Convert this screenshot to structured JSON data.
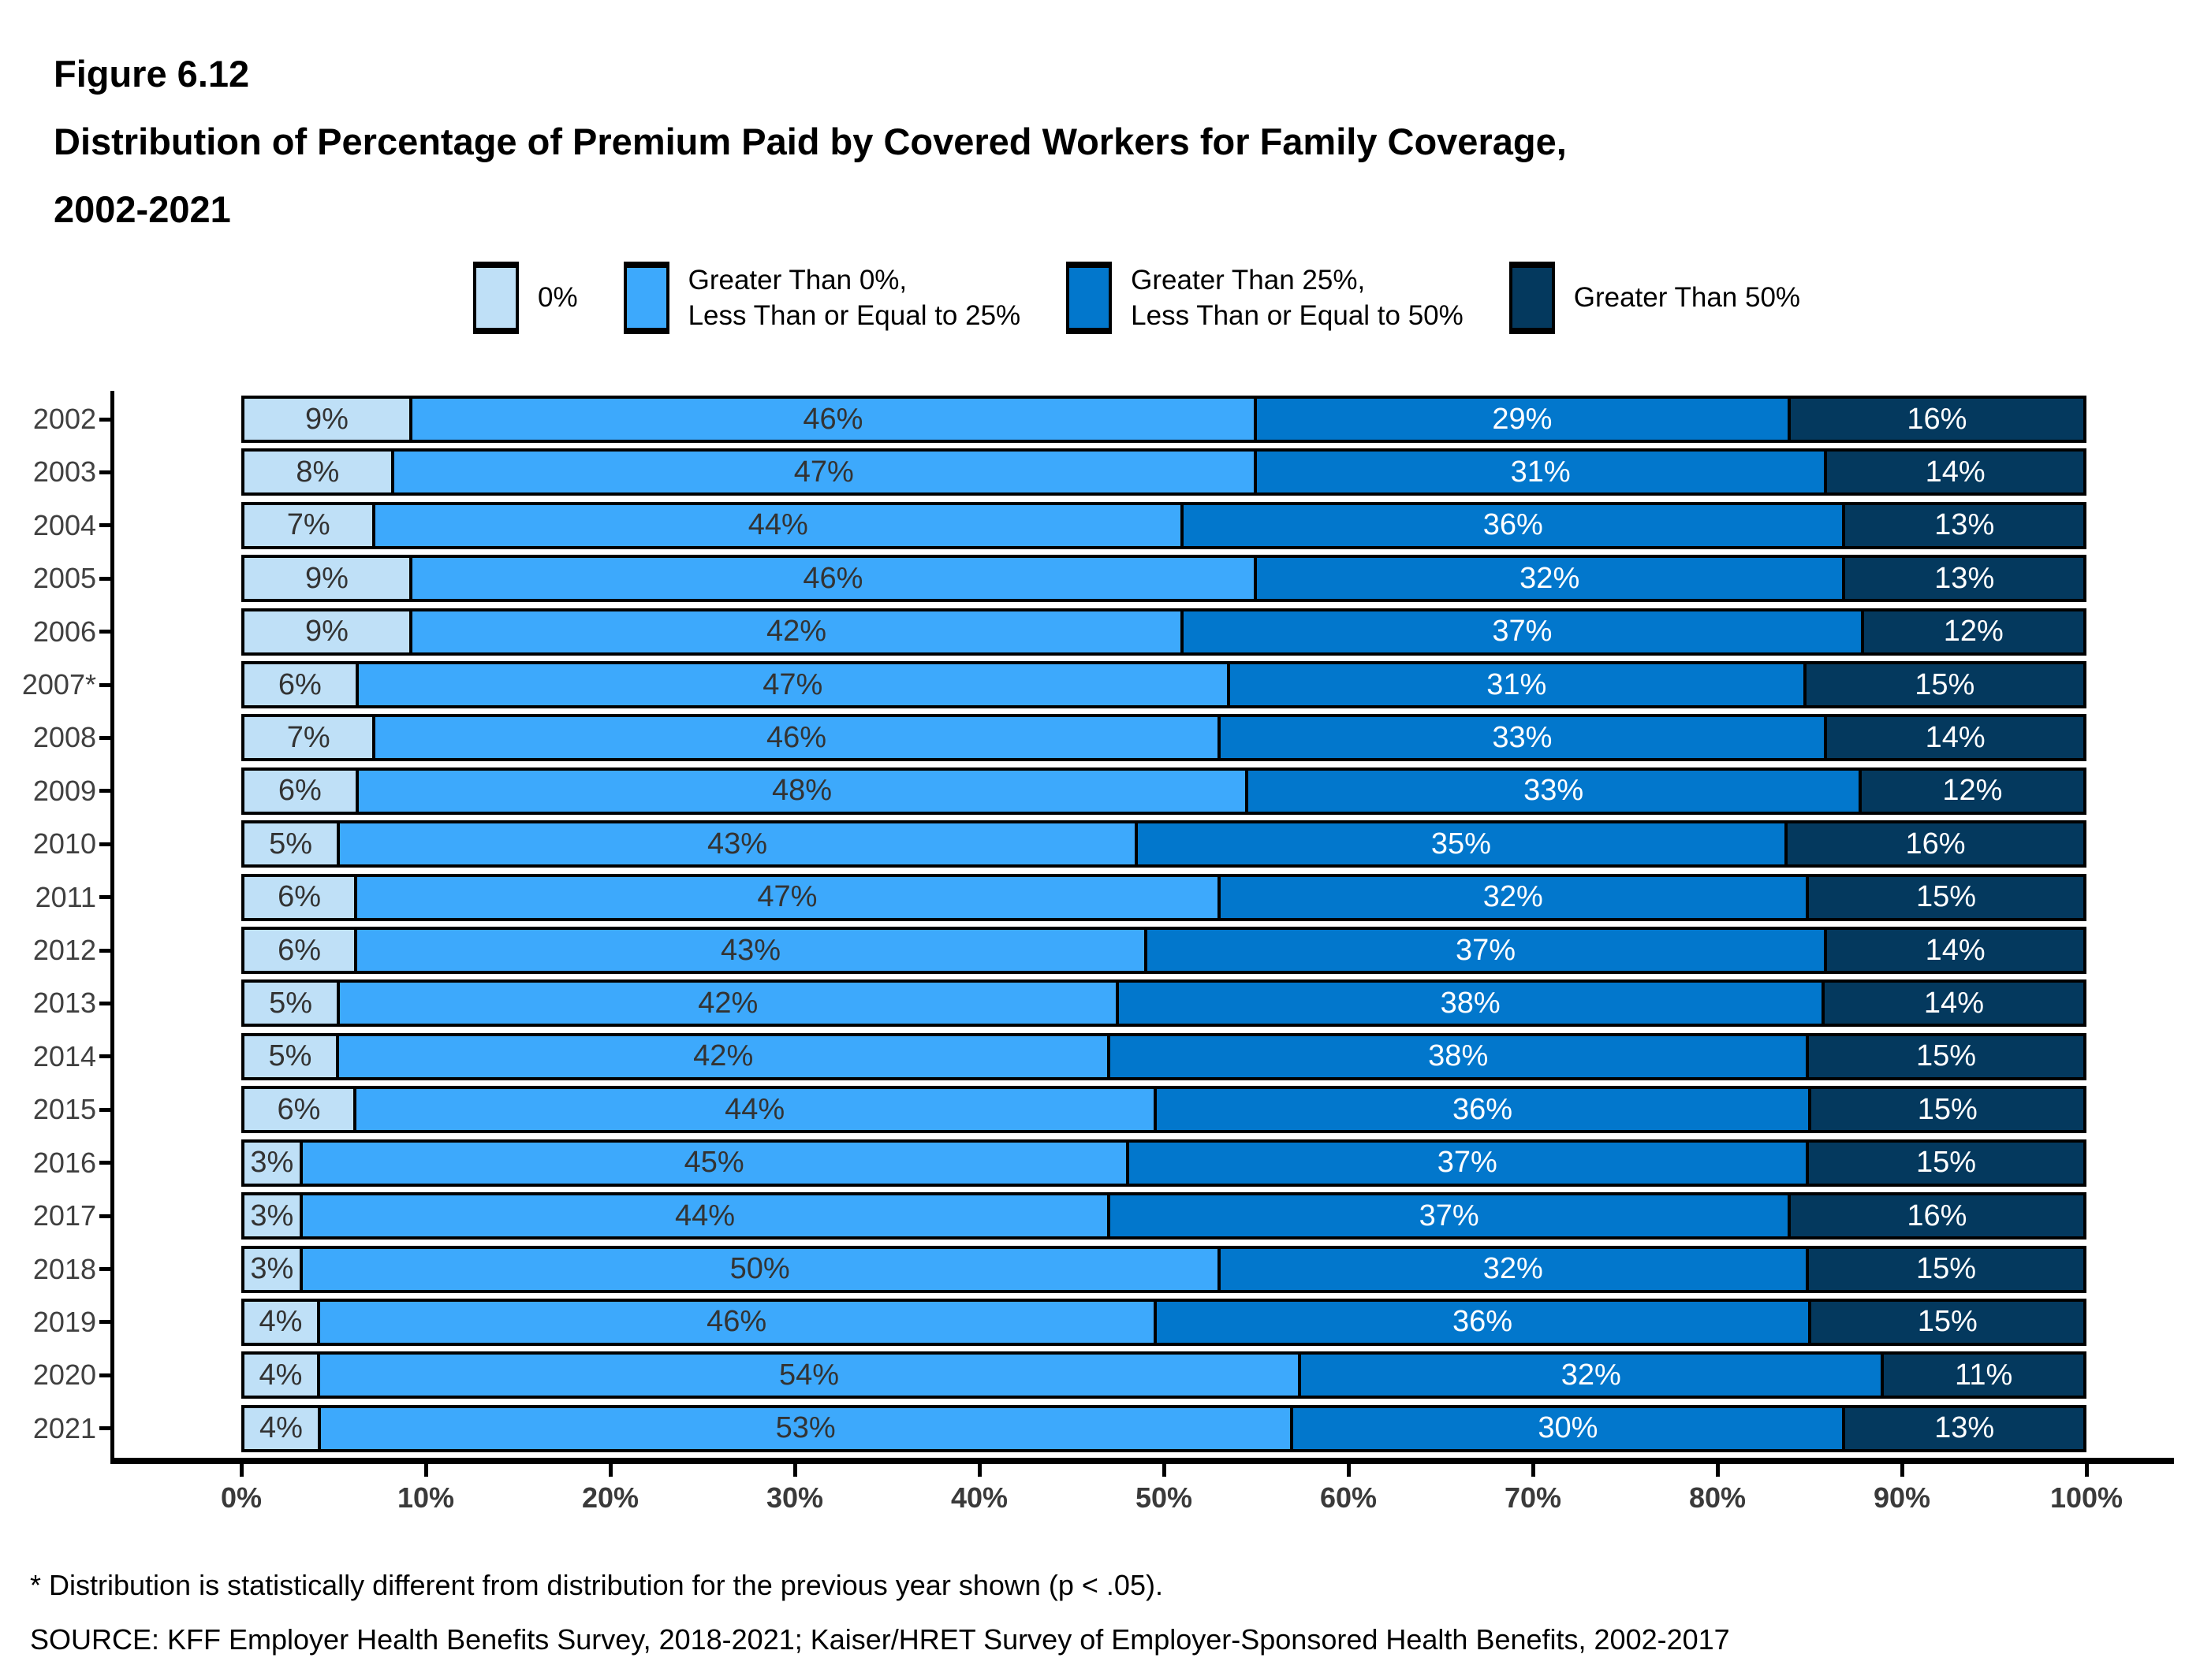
{
  "figure": {
    "label": "Figure 6.12",
    "title_line1": "Distribution of Percentage of Premium Paid by Covered Workers for Family Coverage,",
    "title_line2": "2002-2021"
  },
  "legend": {
    "items": [
      {
        "line1": "0%",
        "line2": "",
        "color": "#BFE0F7"
      },
      {
        "line1": "Greater Than 0%,",
        "line2": "Less Than or Equal to 25%",
        "color": "#3DA9FC"
      },
      {
        "line1": "Greater Than 25%,",
        "line2": "Less Than or Equal to 50%",
        "color": "#0277CC"
      },
      {
        "line1": "Greater Than 50%",
        "line2": "",
        "color": "#04395E"
      }
    ]
  },
  "chart_data": {
    "type": "bar",
    "orientation": "horizontal",
    "stacked": true,
    "value_unit": "%",
    "title": "Distribution of Percentage of Premium Paid by Covered Workers for Family Coverage, 2002-2021",
    "categories": [
      "2002",
      "2003",
      "2004",
      "2005",
      "2006",
      "2007*",
      "2008",
      "2009",
      "2010",
      "2011",
      "2012",
      "2013",
      "2014",
      "2015",
      "2016",
      "2017",
      "2018",
      "2019",
      "2020",
      "2021"
    ],
    "series": [
      {
        "name": "0%",
        "color": "#BFE0F7",
        "label_color": "#333333",
        "values": [
          9,
          8,
          7,
          9,
          9,
          6,
          7,
          6,
          5,
          6,
          6,
          5,
          5,
          6,
          3,
          3,
          3,
          4,
          4,
          4
        ]
      },
      {
        "name": "Greater Than 0%, Less Than or Equal to 25%",
        "color": "#3DA9FC",
        "label_color": "#333333",
        "values": [
          46,
          47,
          44,
          46,
          42,
          47,
          46,
          48,
          43,
          47,
          43,
          42,
          42,
          44,
          45,
          44,
          50,
          46,
          54,
          53
        ]
      },
      {
        "name": "Greater Than 25%, Less Than or Equal to 50%",
        "color": "#0277CC",
        "label_color": "#FFFFFF",
        "values": [
          29,
          31,
          36,
          32,
          37,
          31,
          33,
          33,
          35,
          32,
          37,
          38,
          38,
          36,
          37,
          37,
          32,
          36,
          32,
          30
        ]
      },
      {
        "name": "Greater Than 50%",
        "color": "#04395E",
        "label_color": "#FFFFFF",
        "values": [
          16,
          14,
          13,
          13,
          12,
          15,
          14,
          12,
          16,
          15,
          14,
          14,
          15,
          15,
          15,
          16,
          15,
          15,
          11,
          13
        ]
      }
    ],
    "x_axis": {
      "tick_labels": [
        "0%",
        "10%",
        "20%",
        "30%",
        "40%",
        "50%",
        "60%",
        "70%",
        "80%",
        "90%",
        "100%"
      ],
      "range": [
        0,
        100
      ],
      "grid": false
    },
    "legend_position": "top"
  },
  "footnotes": {
    "note": "* Distribution is statistically different from distribution for the previous year shown (p < .05).",
    "source": "SOURCE: KFF Employer Health Benefits Survey, 2018-2021; Kaiser/HRET Survey of Employer-Sponsored Health Benefits, 2002-2017"
  }
}
